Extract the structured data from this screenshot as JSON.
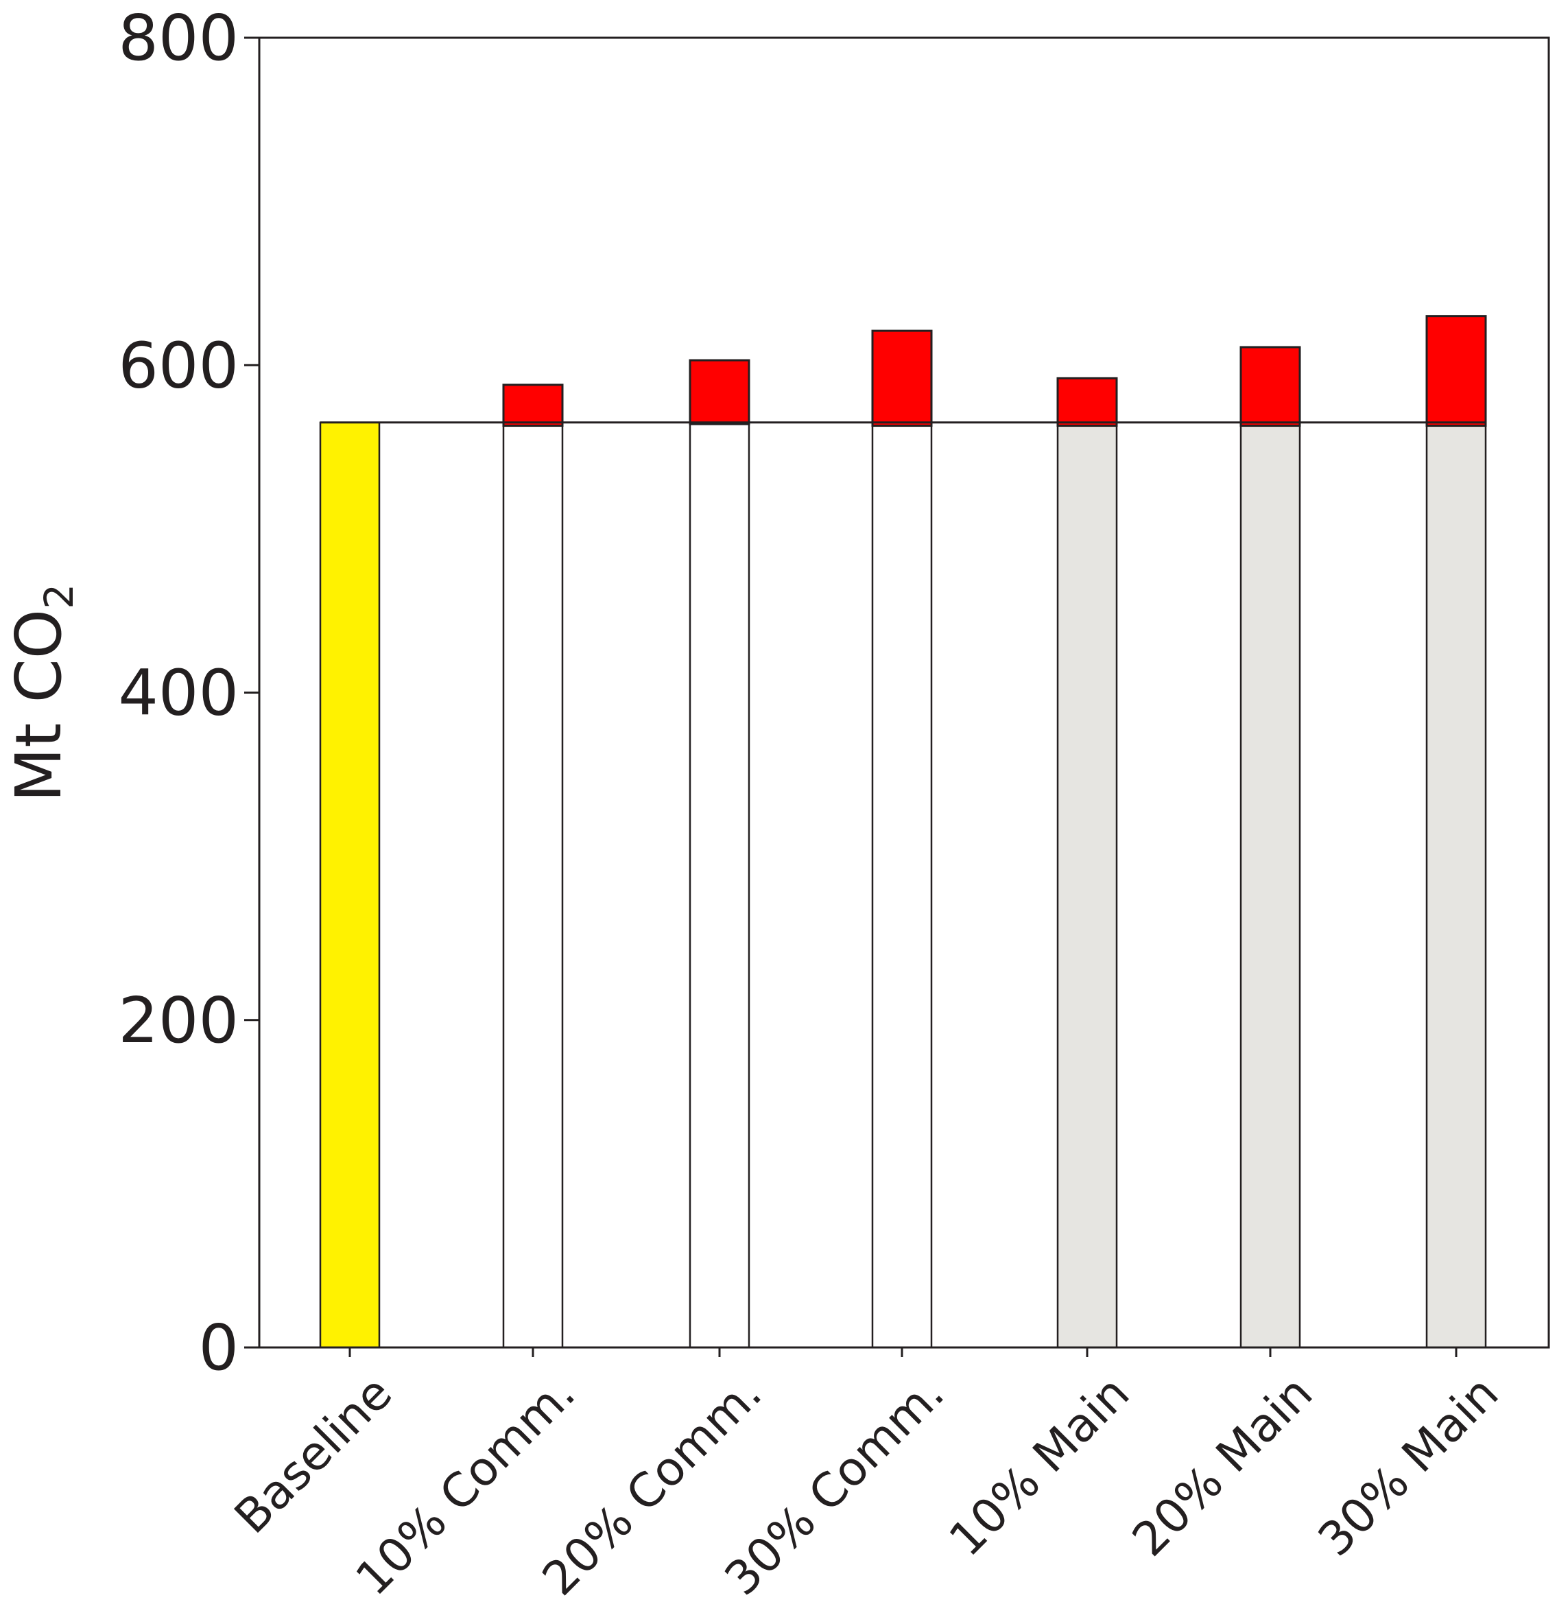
{
  "chart_data": {
    "type": "bar",
    "stacked": true,
    "categories": [
      "Baseline",
      "10% Comm.",
      "20% Comm.",
      "30% Comm.",
      "10% Main",
      "20% Main",
      "30% Main"
    ],
    "series": [
      {
        "values": [
          565,
          563,
          564,
          563,
          563,
          563,
          563
        ],
        "colors": [
          "#fff200",
          "#ffffff",
          "#ffffff",
          "#ffffff",
          "#e6e5e1",
          "#e6e5e1",
          "#e6e5e1"
        ]
      },
      {
        "values": [
          0,
          25,
          39,
          58,
          29,
          48,
          67
        ],
        "color": "#ff0000"
      }
    ],
    "baseline_level": 565,
    "ylabel": "Mt CO",
    "ylabel_subscript": "2",
    "yticks": [
      "0",
      "200",
      "400",
      "600",
      "800"
    ],
    "ylim": [
      0,
      800
    ],
    "grid": false,
    "legend": "none"
  }
}
